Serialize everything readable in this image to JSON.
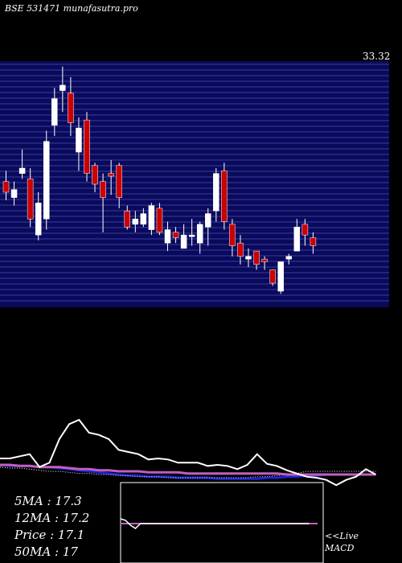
{
  "header": "BSE 531471 munafasutra.pro",
  "price_label": "33.32",
  "stats": {
    "ma5": "5MA : 17.3",
    "ma12": "12MA : 17.2",
    "price": "Price   : 17.1",
    "ma50": "50MA : 17"
  },
  "macd_labels": {
    "live": "<<Live",
    "macd": "MACD"
  },
  "colors": {
    "background": "#000000",
    "panel": "#0a0a5a",
    "grid": "#3a3aaa",
    "up_candle": "#ffffff",
    "down_candle": "#cc0000",
    "price_line": "#ffffff",
    "ma_short": "#c060c0",
    "ma_long": "#2020d0",
    "ma_dotted": "#ffffff"
  },
  "chart_data": {
    "type": "candlestick",
    "ymax_label": "33.32",
    "candles": [
      {
        "o": 25.4,
        "c": 24.6,
        "h": 26.2,
        "l": 24.0
      },
      {
        "o": 24.2,
        "c": 24.8,
        "h": 25.4,
        "l": 23.6
      },
      {
        "o": 26.0,
        "c": 26.4,
        "h": 27.8,
        "l": 25.6
      },
      {
        "o": 25.6,
        "c": 22.6,
        "h": 26.4,
        "l": 22.0
      },
      {
        "o": 21.4,
        "c": 23.8,
        "h": 24.6,
        "l": 21.0
      },
      {
        "o": 22.6,
        "c": 28.4,
        "h": 29.2,
        "l": 21.8
      },
      {
        "o": 29.6,
        "c": 31.6,
        "h": 32.4,
        "l": 28.8
      },
      {
        "o": 32.2,
        "c": 32.6,
        "h": 34.0,
        "l": 30.6
      },
      {
        "o": 32.0,
        "c": 29.8,
        "h": 33.2,
        "l": 28.8
      },
      {
        "o": 27.6,
        "c": 29.4,
        "h": 30.2,
        "l": 26.2
      },
      {
        "o": 30.0,
        "c": 26.0,
        "h": 30.6,
        "l": 25.4
      },
      {
        "o": 26.6,
        "c": 25.2,
        "h": 26.8,
        "l": 24.6
      },
      {
        "o": 25.4,
        "c": 24.2,
        "h": 26.0,
        "l": 21.6
      },
      {
        "o": 26.0,
        "c": 25.8,
        "h": 27.0,
        "l": 24.4
      },
      {
        "o": 26.6,
        "c": 24.2,
        "h": 26.8,
        "l": 23.4
      },
      {
        "o": 23.2,
        "c": 22.0,
        "h": 23.6,
        "l": 21.8
      },
      {
        "o": 22.2,
        "c": 22.6,
        "h": 23.2,
        "l": 21.6
      },
      {
        "o": 22.2,
        "c": 23.0,
        "h": 23.4,
        "l": 22.0
      },
      {
        "o": 21.8,
        "c": 23.6,
        "h": 23.8,
        "l": 21.4
      },
      {
        "o": 23.4,
        "c": 21.6,
        "h": 23.8,
        "l": 21.4
      },
      {
        "o": 20.8,
        "c": 21.8,
        "h": 22.4,
        "l": 20.2
      },
      {
        "o": 21.6,
        "c": 21.2,
        "h": 22.0,
        "l": 20.8
      },
      {
        "o": 20.4,
        "c": 21.4,
        "h": 22.2,
        "l": 20.4
      },
      {
        "o": 21.4,
        "c": 21.4,
        "h": 22.6,
        "l": 20.6
      },
      {
        "o": 20.8,
        "c": 22.2,
        "h": 22.4,
        "l": 20.0
      },
      {
        "o": 22.0,
        "c": 23.0,
        "h": 23.4,
        "l": 20.6
      },
      {
        "o": 23.2,
        "c": 26.0,
        "h": 26.4,
        "l": 22.4
      },
      {
        "o": 26.2,
        "c": 22.4,
        "h": 26.8,
        "l": 21.8
      },
      {
        "o": 22.2,
        "c": 20.6,
        "h": 22.6,
        "l": 19.8
      },
      {
        "o": 20.8,
        "c": 19.8,
        "h": 21.4,
        "l": 19.2
      },
      {
        "o": 19.6,
        "c": 19.8,
        "h": 20.4,
        "l": 19.0
      },
      {
        "o": 20.2,
        "c": 19.2,
        "h": 20.2,
        "l": 18.8
      },
      {
        "o": 19.6,
        "c": 19.4,
        "h": 19.8,
        "l": 18.8
      },
      {
        "o": 18.8,
        "c": 17.8,
        "h": 18.8,
        "l": 17.6
      },
      {
        "o": 17.2,
        "c": 19.4,
        "h": 19.4,
        "l": 17.0
      },
      {
        "o": 19.6,
        "c": 19.8,
        "h": 20.0,
        "l": 19.2
      },
      {
        "o": 20.2,
        "c": 22.0,
        "h": 22.6,
        "l": 20.2
      },
      {
        "o": 22.2,
        "c": 21.4,
        "h": 22.6,
        "l": 20.6
      },
      {
        "o": 21.2,
        "c": 20.6,
        "h": 21.6,
        "l": 20.0
      }
    ],
    "indicator": {
      "price_line": [
        15.0,
        15.0,
        15.2,
        15.4,
        14.2,
        14.6,
        16.8,
        18.2,
        18.6,
        17.4,
        17.2,
        16.8,
        15.8,
        15.6,
        15.4,
        14.9,
        15.0,
        14.9,
        14.6,
        14.6,
        14.6,
        14.3,
        14.4,
        14.3,
        14.0,
        14.4,
        15.4,
        14.5,
        14.3,
        13.9,
        13.6,
        13.3,
        13.2,
        13.0,
        12.5,
        13.0,
        13.3,
        14.0,
        13.5
      ],
      "ma_short": [
        14.4,
        14.4,
        14.3,
        14.3,
        14.2,
        14.2,
        14.2,
        14.1,
        14.0,
        14.0,
        13.9,
        13.9,
        13.8,
        13.8,
        13.8,
        13.7,
        13.7,
        13.7,
        13.7,
        13.6,
        13.6,
        13.6,
        13.6,
        13.6,
        13.6,
        13.6,
        13.6,
        13.6,
        13.6,
        13.5,
        13.5,
        13.5,
        13.5,
        13.5,
        13.5,
        13.5,
        13.5,
        13.5,
        13.5
      ],
      "ma_long": [
        14.4,
        14.3,
        14.3,
        14.3,
        14.2,
        14.2,
        14.1,
        14.0,
        13.9,
        13.8,
        13.7,
        13.6,
        13.5,
        13.4,
        13.4,
        13.3,
        13.3,
        13.3,
        13.2,
        13.2,
        13.2,
        13.2,
        13.1,
        13.1,
        13.1,
        13.1,
        13.1,
        13.2,
        13.2,
        13.3,
        13.3,
        13.4,
        13.4,
        13.5,
        13.5,
        13.5,
        13.5,
        13.5,
        13.5
      ],
      "ma_dotted": [
        14.2,
        14.1,
        14.1,
        14.0,
        13.9,
        13.8,
        13.8,
        13.7,
        13.6,
        13.6,
        13.5,
        13.5,
        13.4,
        13.4,
        13.3,
        13.3,
        13.3,
        13.2,
        13.2,
        13.2,
        13.2,
        13.2,
        13.2,
        13.2,
        13.2,
        13.2,
        13.3,
        13.3,
        13.4,
        13.5,
        13.6,
        13.8,
        13.8,
        13.8,
        13.8,
        13.8,
        13.8,
        13.8,
        13.8
      ]
    },
    "macd": {
      "signal": [
        0,
        0,
        0,
        0,
        0,
        0,
        0,
        0,
        0,
        0,
        0,
        0,
        0,
        0,
        0,
        0,
        0,
        0,
        0,
        0,
        0,
        0,
        0,
        0,
        0,
        0,
        0,
        0,
        0,
        0,
        0,
        0,
        0,
        0,
        0,
        0,
        0,
        0,
        0
      ],
      "macd_line": [
        0.3,
        0.2,
        -0.1,
        -0.3,
        0.0,
        0.0,
        0.0,
        0.0,
        0.0,
        0.0,
        0.0,
        0.0,
        0.0,
        0.0,
        0.0,
        0.0,
        0.0,
        0.0,
        0.0,
        0.0,
        0.0,
        0.0,
        0.0,
        0.0,
        0.0,
        0.0,
        0.0,
        0.0,
        0.0,
        0.0,
        0.0,
        0.0,
        0.0,
        0.0,
        0.0,
        0.0,
        0.0,
        0.0,
        0.0
      ]
    }
  }
}
